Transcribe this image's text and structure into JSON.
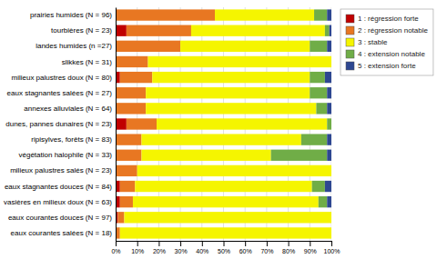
{
  "chart_data": {
    "type": "bar",
    "orientation": "horizontal",
    "stacked": true,
    "grid": true,
    "legend": "right",
    "categories": [
      "prairies humides (N = 96)",
      "tourbières (N = 23)",
      "landes humides (n =27)",
      "slikkes (N = 31)",
      "milieux palustres doux (N = 80)",
      "eaux stagnantes salées (N = 27)",
      "annexes alluviales (N = 64)",
      "dunes, pannes dunaires (N = 23)",
      "ripisylves, forêts (N = 83)",
      "végétation halophile (N = 33)",
      "milieux palustres salés (N = 23)",
      "eaux stagnantes douces (N = 84)",
      "vasières en milieux doux (N = 63)",
      "eaux courantes douces (N = 97)",
      "eaux courantes salées (N = 18)"
    ],
    "series": [
      {
        "name": "1 : régression forte",
        "color": "#c00000",
        "values": [
          0,
          5,
          0,
          0,
          2,
          0,
          0,
          5,
          0,
          0,
          0,
          2,
          2,
          1,
          0
        ]
      },
      {
        "name": "2 : régression notable",
        "color": "#e87722",
        "values": [
          46,
          30,
          30,
          15,
          15,
          14,
          14,
          14,
          12,
          12,
          10,
          7,
          6,
          3,
          2
        ]
      },
      {
        "name": "3 : stable",
        "color": "#f5f500",
        "values": [
          46,
          62,
          60,
          85,
          73,
          76,
          79,
          79,
          74,
          60,
          90,
          82,
          86,
          96,
          98
        ]
      },
      {
        "name": "4 : extension notable",
        "color": "#70ad47",
        "values": [
          6,
          2,
          8,
          0,
          7,
          8,
          5,
          2,
          12,
          26,
          0,
          6,
          4,
          0,
          0
        ]
      },
      {
        "name": "5 : extension forte",
        "color": "#2e4791",
        "values": [
          2,
          1,
          2,
          0,
          3,
          2,
          2,
          0,
          2,
          2,
          0,
          3,
          2,
          0,
          0
        ]
      }
    ],
    "xlim": [
      0,
      100
    ],
    "xticks": [
      {
        "value": 0,
        "label": "0%"
      },
      {
        "value": 10,
        "label": "10%"
      },
      {
        "value": 20,
        "label": "20%"
      },
      {
        "value": 30,
        "label": "30%"
      },
      {
        "value": 40,
        "label": "40%"
      },
      {
        "value": 50,
        "label": "50%"
      },
      {
        "value": 60,
        "label": "60%"
      },
      {
        "value": 70,
        "label": "70%"
      },
      {
        "value": 80,
        "label": "80%"
      },
      {
        "value": 90,
        "label": "90%"
      },
      {
        "value": 100,
        "label": "100%"
      }
    ]
  }
}
